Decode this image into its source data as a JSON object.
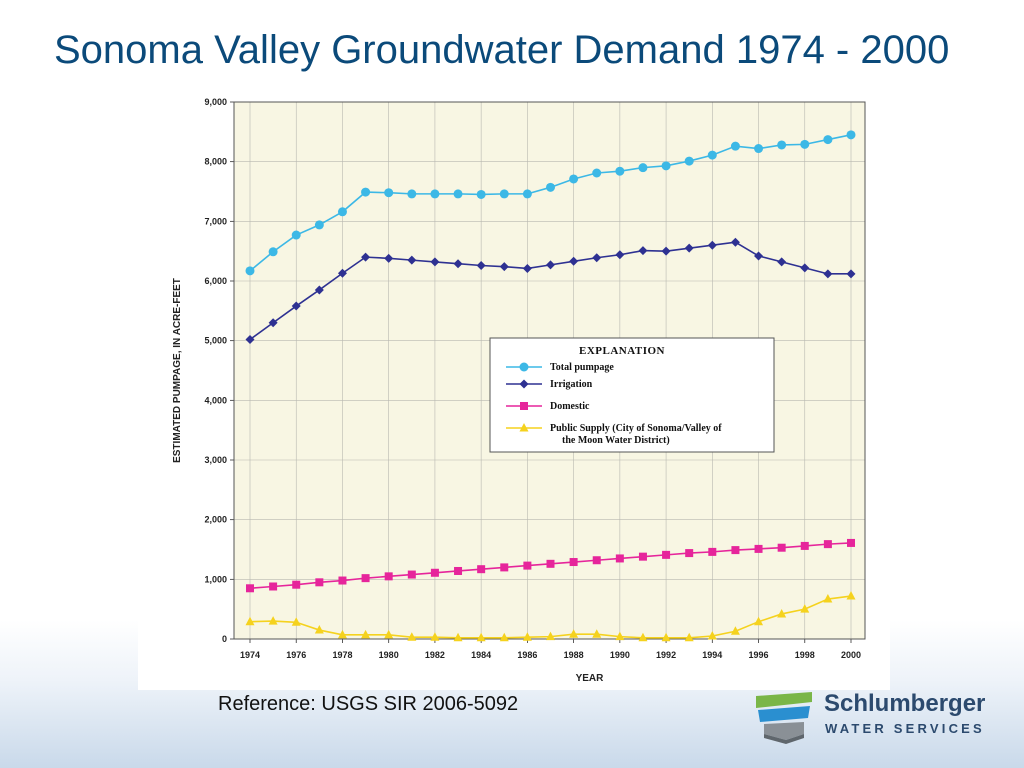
{
  "slide": {
    "title": "Sonoma Valley Groundwater Demand 1974 - 2000",
    "reference": "Reference: USGS SIR 2006-5092"
  },
  "logo": {
    "name": "Schlumberger",
    "subtitle": "WATER SERVICES",
    "colors": {
      "green": "#7ab648",
      "blue": "#2a8fd0",
      "grey": "#8a9096",
      "text": "#2c4a6e"
    }
  },
  "chart_data": {
    "type": "line",
    "xlabel": "YEAR",
    "ylabel": "ESTIMATED PUMPAGE, IN ACRE-FEET",
    "xlim": [
      1974,
      2000
    ],
    "ylim": [
      0,
      9000
    ],
    "x_ticks": [
      1974,
      1976,
      1978,
      1980,
      1982,
      1984,
      1986,
      1988,
      1990,
      1992,
      1994,
      1996,
      1998,
      2000
    ],
    "y_ticks": [
      0,
      1000,
      2000,
      3000,
      4000,
      5000,
      6000,
      7000,
      8000,
      9000
    ],
    "y_tick_labels": [
      "0",
      "1,000",
      "2,000",
      "3,000",
      "4,000",
      "5,000",
      "6,000",
      "7,000",
      "8,000",
      "9,000"
    ],
    "grid": true,
    "background": "#f8f6e3",
    "legend": {
      "title": "EXPLANATION",
      "placement": "center-right"
    },
    "x": [
      1974,
      1975,
      1976,
      1977,
      1978,
      1979,
      1980,
      1981,
      1982,
      1983,
      1984,
      1985,
      1986,
      1987,
      1988,
      1989,
      1990,
      1991,
      1992,
      1993,
      1994,
      1995,
      1996,
      1997,
      1998,
      1999,
      2000
    ],
    "series": [
      {
        "name": "Total pumpage",
        "marker": "circle",
        "color": "#3cb8e6",
        "values": [
          6170,
          6490,
          6770,
          6940,
          7160,
          7490,
          7480,
          7460,
          7460,
          7460,
          7450,
          7460,
          7460,
          7570,
          7710,
          7810,
          7840,
          7900,
          7930,
          8010,
          8110,
          8260,
          8220,
          8280,
          8290,
          8370,
          8450
        ]
      },
      {
        "name": "Irrigation",
        "marker": "diamond",
        "color": "#2e3192",
        "values": [
          5020,
          5300,
          5580,
          5850,
          6130,
          6400,
          6380,
          6350,
          6320,
          6290,
          6260,
          6240,
          6210,
          6270,
          6330,
          6390,
          6440,
          6510,
          6500,
          6550,
          6600,
          6650,
          6420,
          6320,
          6220,
          6120,
          6120
        ]
      },
      {
        "name": "Domestic",
        "marker": "square",
        "color": "#e6259b",
        "values": [
          850,
          880,
          910,
          950,
          980,
          1020,
          1050,
          1080,
          1110,
          1140,
          1170,
          1200,
          1230,
          1260,
          1290,
          1320,
          1350,
          1380,
          1410,
          1440,
          1460,
          1490,
          1510,
          1530,
          1560,
          1590,
          1610
        ]
      },
      {
        "name": "Public Supply (City of Sonoma/Valley of the Moon Water District)",
        "name_lines": [
          "Public Supply (City of Sonoma/Valley of",
          "the Moon Water District)"
        ],
        "marker": "triangle",
        "color": "#f5d21e",
        "values": [
          290,
          300,
          280,
          150,
          70,
          70,
          70,
          30,
          30,
          20,
          20,
          20,
          30,
          40,
          80,
          80,
          40,
          20,
          20,
          20,
          50,
          130,
          290,
          420,
          500,
          670,
          720
        ]
      }
    ]
  }
}
